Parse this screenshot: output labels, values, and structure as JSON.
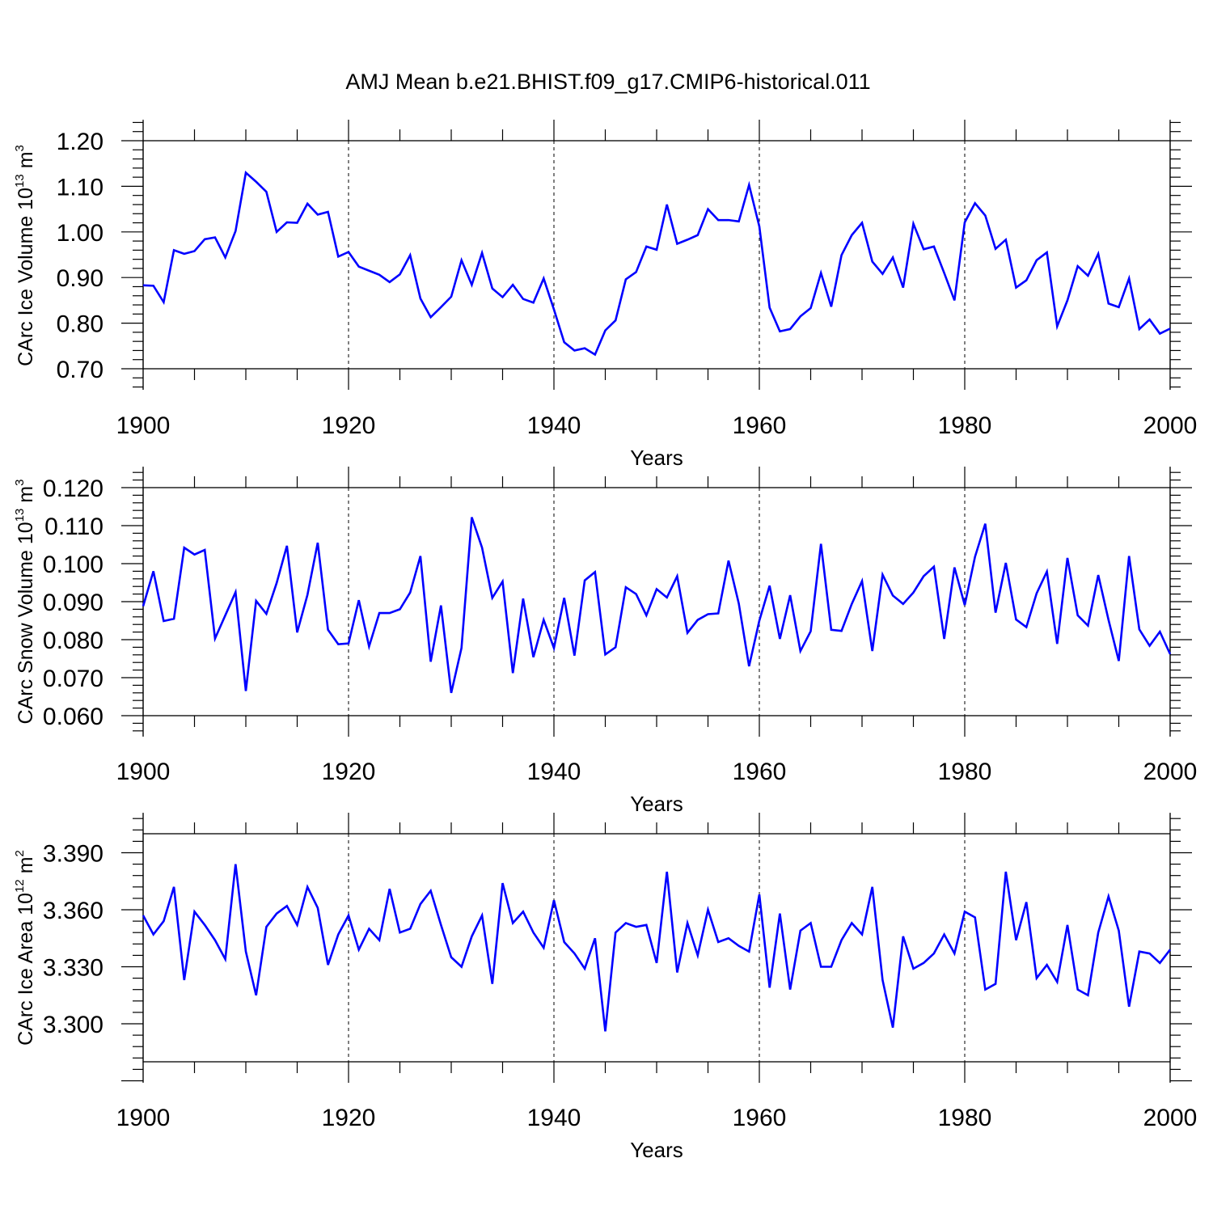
{
  "figure": {
    "title": "AMJ Mean b.e21.BHIST.f09_g17.CMIP6-historical.011"
  },
  "colors": {
    "series": "#0000ff",
    "axes": "#000000",
    "background": "#ffffff"
  },
  "chart_data": [
    {
      "type": "line",
      "name": "ice-volume",
      "xlabel": "Years",
      "ylabel": {
        "text": "CArc Ice Volume 10",
        "sup1": "13",
        "mid": " m",
        "sup2": "3"
      },
      "xlim": [
        1900,
        2000
      ],
      "ylim": [
        0.7,
        1.2
      ],
      "xticks": [
        "1900",
        "1920",
        "1940",
        "1960",
        "1980",
        "2000"
      ],
      "yticks": [
        "0.70",
        "0.80",
        "0.90",
        "1.00",
        "1.10",
        "1.20"
      ],
      "grid_x": true,
      "x_start": 1900,
      "values": [
        0.883,
        0.882,
        0.846,
        0.96,
        0.952,
        0.958,
        0.984,
        0.988,
        0.944,
        1.002,
        1.13,
        1.11,
        1.088,
        1.0,
        1.021,
        1.02,
        1.062,
        1.038,
        1.044,
        0.946,
        0.956,
        0.924,
        0.915,
        0.906,
        0.89,
        0.907,
        0.949,
        0.854,
        0.813,
        0.835,
        0.858,
        0.938,
        0.884,
        0.954,
        0.876,
        0.857,
        0.884,
        0.853,
        0.845,
        0.898,
        0.83,
        0.758,
        0.74,
        0.745,
        0.731,
        0.784,
        0.806,
        0.896,
        0.912,
        0.968,
        0.961,
        1.06,
        0.974,
        0.983,
        0.993,
        1.05,
        1.026,
        1.026,
        1.023,
        1.103,
        1.012,
        0.834,
        0.782,
        0.787,
        0.815,
        0.833,
        0.91,
        0.836,
        0.949,
        0.993,
        1.02,
        0.935,
        0.908,
        0.944,
        0.878,
        1.018,
        0.962,
        0.968,
        0.91,
        0.85,
        1.021,
        1.063,
        1.036,
        0.963,
        0.983,
        0.878,
        0.894,
        0.938,
        0.955,
        0.793,
        0.85,
        0.925,
        0.904,
        0.952,
        0.843,
        0.835,
        0.898,
        0.787,
        0.808,
        0.777,
        0.788
      ]
    },
    {
      "type": "line",
      "name": "snow-volume",
      "xlabel": "Years",
      "ylabel": {
        "text": "CArc Snow Volume 10",
        "sup1": "13",
        "mid": " m",
        "sup2": "3"
      },
      "xlim": [
        1900,
        2000
      ],
      "ylim": [
        0.06,
        0.12
      ],
      "xticks": [
        "1900",
        "1920",
        "1940",
        "1960",
        "1980",
        "2000"
      ],
      "yticks": [
        "0.060",
        "0.070",
        "0.080",
        "0.090",
        "0.100",
        "0.110",
        "0.120"
      ],
      "grid_x": true,
      "x_start": 1900,
      "values": [
        0.0888,
        0.098,
        0.0849,
        0.0855,
        0.1042,
        0.1024,
        0.1036,
        0.0803,
        0.0864,
        0.0925,
        0.0665,
        0.0902,
        0.0868,
        0.0949,
        0.1047,
        0.0819,
        0.0918,
        0.1055,
        0.0826,
        0.0788,
        0.079,
        0.0904,
        0.0782,
        0.087,
        0.087,
        0.088,
        0.0924,
        0.102,
        0.0742,
        0.089,
        0.066,
        0.0778,
        0.1122,
        0.1042,
        0.091,
        0.0953,
        0.0712,
        0.0908,
        0.0754,
        0.0852,
        0.0778,
        0.091,
        0.0758,
        0.0956,
        0.0978,
        0.0761,
        0.078,
        0.0938,
        0.092,
        0.0864,
        0.0933,
        0.0911,
        0.0967,
        0.0818,
        0.0852,
        0.0867,
        0.0869,
        0.1008,
        0.0895,
        0.073,
        0.085,
        0.0942,
        0.0802,
        0.0917,
        0.077,
        0.0822,
        0.1052,
        0.0826,
        0.0823,
        0.0894,
        0.0954,
        0.077,
        0.0971,
        0.0916,
        0.0894,
        0.0924,
        0.0967,
        0.0992,
        0.0802,
        0.099,
        0.0891,
        0.1018,
        0.1105,
        0.0871,
        0.1002,
        0.0853,
        0.0833,
        0.0922,
        0.0979,
        0.0789,
        0.1015,
        0.0864,
        0.0837,
        0.097,
        0.0852,
        0.0744,
        0.102,
        0.0827,
        0.0784,
        0.0821,
        0.0762
      ]
    },
    {
      "type": "line",
      "name": "ice-area",
      "xlabel": "Years",
      "ylabel": {
        "text": "CArc Ice Area 10",
        "sup1": "12",
        "mid": " m",
        "sup2": "2"
      },
      "xlim": [
        1900,
        2000
      ],
      "ylim": [
        3.28,
        3.4
      ],
      "xticks": [
        "1900",
        "1920",
        "1940",
        "1960",
        "1980",
        "2000"
      ],
      "yticks": [
        "3.300",
        "3.330",
        "3.360",
        "3.390"
      ],
      "grid_x": true,
      "x_start": 1900,
      "values": [
        3.357,
        3.347,
        3.354,
        3.372,
        3.323,
        3.359,
        3.352,
        3.344,
        3.334,
        3.384,
        3.338,
        3.315,
        3.351,
        3.358,
        3.362,
        3.352,
        3.372,
        3.361,
        3.331,
        3.347,
        3.357,
        3.339,
        3.35,
        3.344,
        3.371,
        3.348,
        3.35,
        3.363,
        3.37,
        3.352,
        3.335,
        3.33,
        3.346,
        3.357,
        3.321,
        3.374,
        3.353,
        3.359,
        3.348,
        3.34,
        3.365,
        3.343,
        3.337,
        3.329,
        3.345,
        3.296,
        3.348,
        3.353,
        3.351,
        3.352,
        3.332,
        3.38,
        3.327,
        3.353,
        3.336,
        3.36,
        3.343,
        3.345,
        3.341,
        3.338,
        3.368,
        3.319,
        3.358,
        3.318,
        3.349,
        3.353,
        3.33,
        3.33,
        3.344,
        3.353,
        3.347,
        3.372,
        3.323,
        3.298,
        3.346,
        3.329,
        3.332,
        3.337,
        3.347,
        3.337,
        3.359,
        3.356,
        3.318,
        3.321,
        3.38,
        3.344,
        3.364,
        3.324,
        3.331,
        3.322,
        3.352,
        3.318,
        3.315,
        3.348,
        3.367,
        3.349,
        3.309,
        3.338,
        3.337,
        3.332,
        3.339
      ]
    }
  ]
}
